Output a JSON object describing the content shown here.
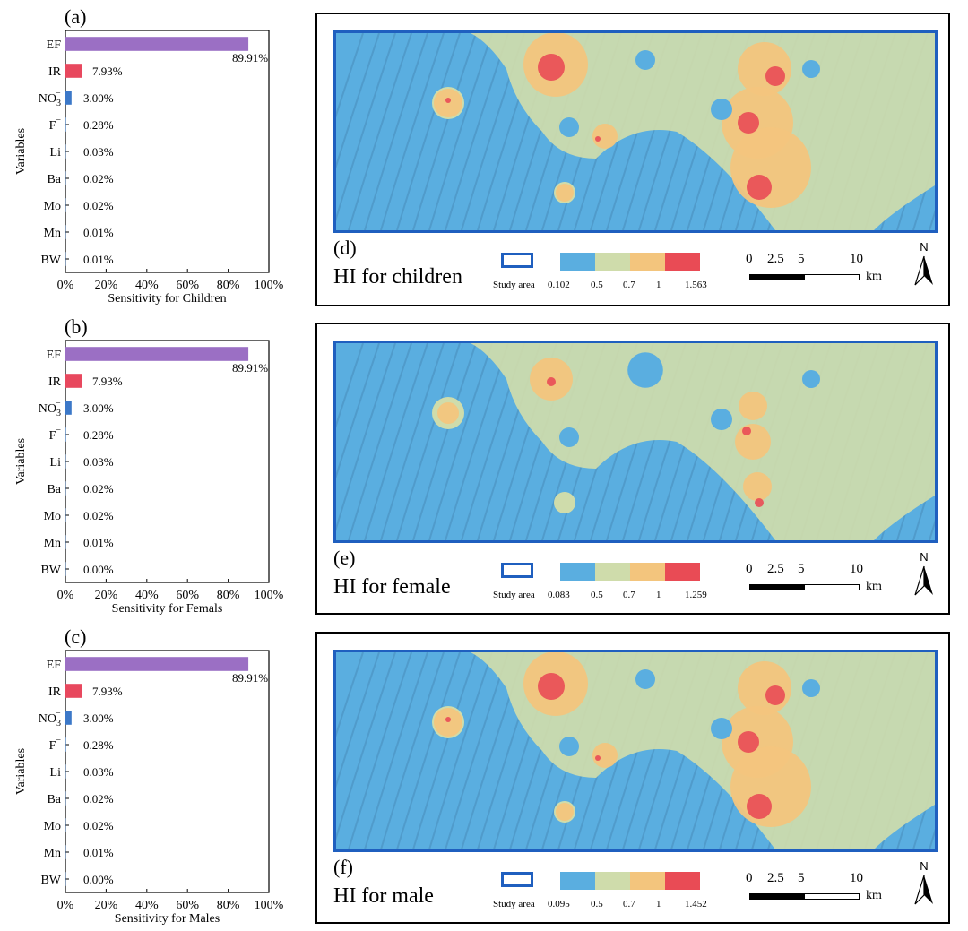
{
  "colors": {
    "bar_EF": "#9b6fc4",
    "bar_IR": "#e8485e",
    "bar_NO3": "#3c78c8",
    "bar_default": "#5b8fd0",
    "map_low": "#5aaee0",
    "map_mid": "#cfdcab",
    "map_high": "#f3c57d",
    "map_top": "#e94b55",
    "border": "#1f5fbf"
  },
  "common": {
    "ylabel": "Variables",
    "variables": [
      "EF",
      "IR",
      "NO3",
      "F",
      "Li",
      "Ba",
      "Mo",
      "Mn",
      "BW"
    ],
    "xticks": [
      "0%",
      "20%",
      "40%",
      "60%",
      "80%",
      "100%"
    ]
  },
  "chart_data": [
    {
      "type": "bar",
      "orientation": "horizontal",
      "panel": "(a)",
      "xlabel": "Sensitivity for Children",
      "categories": [
        "EF",
        "IR",
        "NO3-",
        "F-",
        "Li",
        "Ba",
        "Mo",
        "Mn",
        "BW"
      ],
      "values": [
        89.91,
        7.93,
        3.0,
        0.28,
        0.03,
        0.02,
        0.02,
        0.01,
        0.01
      ],
      "labels": [
        "89.91%",
        "7.93%",
        "3.00%",
        "0.28%",
        "0.03%",
        "0.02%",
        "0.02%",
        "0.01%",
        "0.01%"
      ],
      "xlim": [
        0,
        100
      ]
    },
    {
      "type": "bar",
      "orientation": "horizontal",
      "panel": "(b)",
      "xlabel": "Sensitivity for Femals",
      "categories": [
        "EF",
        "IR",
        "NO3-",
        "F-",
        "Li",
        "Ba",
        "Mo",
        "Mn",
        "BW"
      ],
      "values": [
        89.91,
        7.93,
        3.0,
        0.28,
        0.03,
        0.02,
        0.02,
        0.01,
        0.0
      ],
      "labels": [
        "89.91%",
        "7.93%",
        "3.00%",
        "0.28%",
        "0.03%",
        "0.02%",
        "0.02%",
        "0.01%",
        "0.00%"
      ],
      "xlim": [
        0,
        100
      ]
    },
    {
      "type": "bar",
      "orientation": "horizontal",
      "panel": "(c)",
      "xlabel": "Sensitivity for Males",
      "categories": [
        "EF",
        "IR",
        "NO3-",
        "F-",
        "Li",
        "Ba",
        "Mo",
        "Mn",
        "BW"
      ],
      "values": [
        89.91,
        7.93,
        3.0,
        0.28,
        0.03,
        0.02,
        0.02,
        0.01,
        0.0
      ],
      "labels": [
        "89.91%",
        "7.93%",
        "3.00%",
        "0.28%",
        "0.03%",
        "0.02%",
        "0.02%",
        "0.01%",
        "0.00%"
      ],
      "xlim": [
        0,
        100
      ]
    }
  ],
  "maps": [
    {
      "label": "(d)",
      "title": "HI for children",
      "ticks": [
        "0.102",
        "0.5",
        "0.7",
        "1",
        "1.563"
      ]
    },
    {
      "label": "(e)",
      "title": "HI for female",
      "ticks": [
        "0.083",
        "0.5",
        "0.7",
        "1",
        "1.259"
      ]
    },
    {
      "label": "(f)",
      "title": "HI for male",
      "ticks": [
        "0.095",
        "0.5",
        "0.7",
        "1",
        "1.452"
      ]
    }
  ],
  "legend": {
    "study_area": "Study area",
    "scale_ticks": [
      "0",
      "2.5",
      "5",
      "10"
    ],
    "unit": "km",
    "north": "N"
  }
}
